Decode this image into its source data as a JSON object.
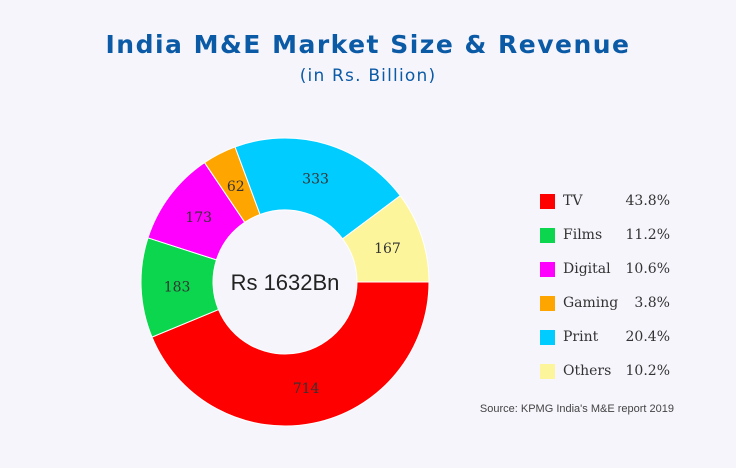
{
  "title": "India M&E Market Size & Revenue",
  "subtitle": "(in Rs. Billion)",
  "center_label": "Rs 1632Bn",
  "source": "Source: KPMG India's M&E report 2019",
  "chart_data": {
    "type": "pie",
    "donut": true,
    "title": "India M&E Market Size & Revenue",
    "subtitle": "(in Rs. Billion)",
    "categories": [
      "TV",
      "Films",
      "Digital",
      "Gaming",
      "Print",
      "Others"
    ],
    "values": [
      714,
      183,
      173,
      62,
      333,
      167
    ],
    "percentages": [
      "43.8%",
      "11.2%",
      "10.6%",
      "3.8%",
      "20.4%",
      "10.2%"
    ],
    "colors": [
      "#ff0000",
      "#0bd64e",
      "#ff00ff",
      "#ffa500",
      "#00ccff",
      "#fcf59c"
    ],
    "legend": "right",
    "center_text": "Rs 1632Bn"
  }
}
